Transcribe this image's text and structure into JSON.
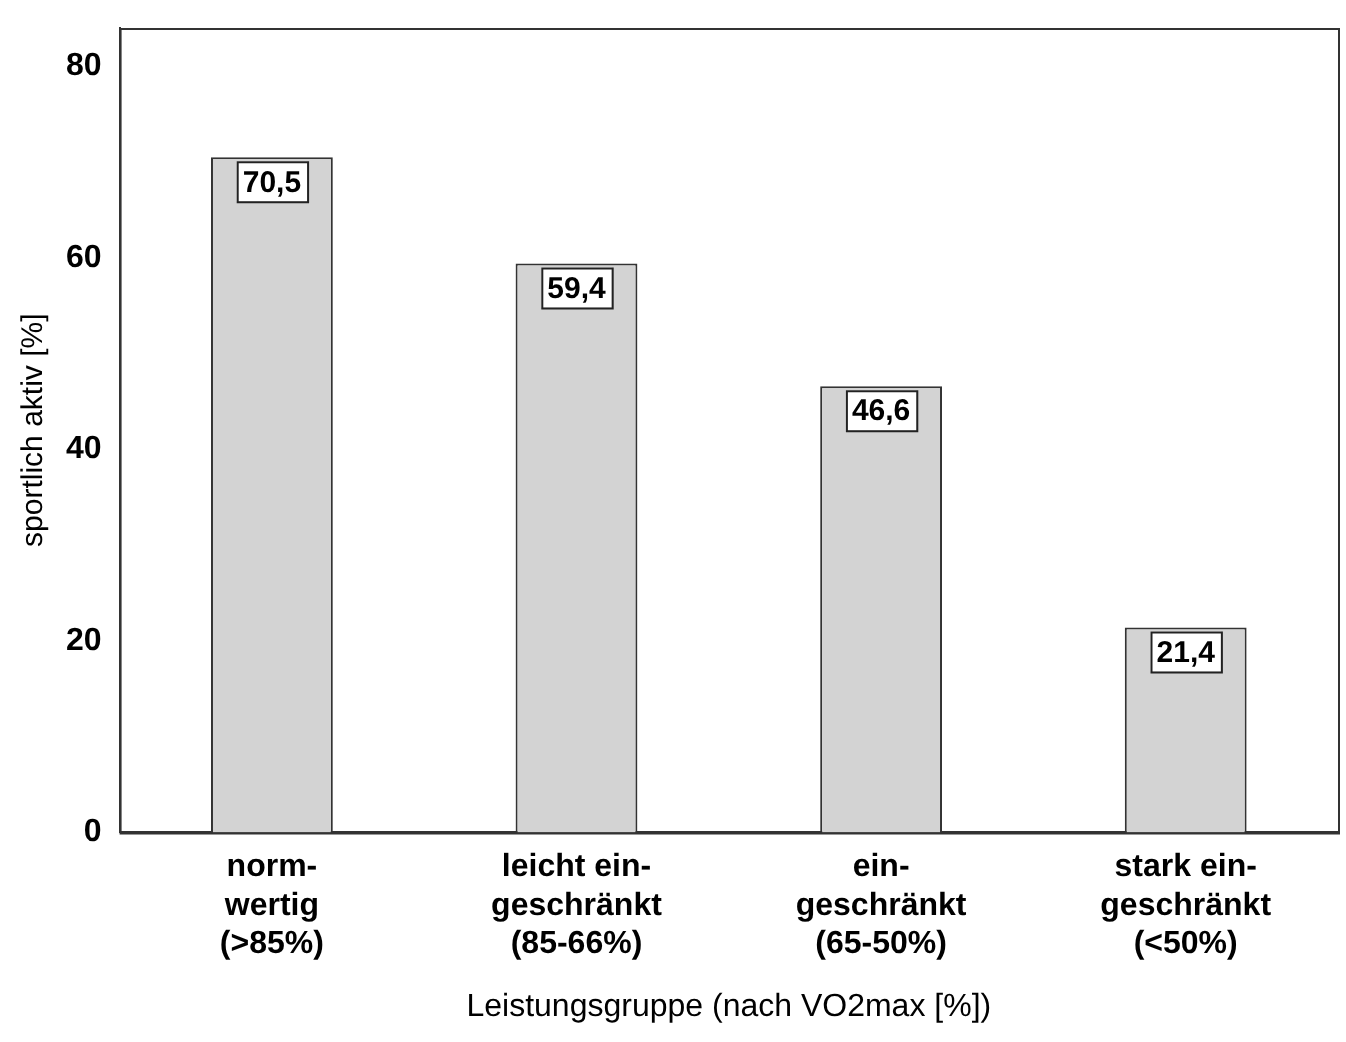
{
  "chart_data": {
    "type": "bar",
    "xlabel": "Leistungsgruppe (nach VO2max [%])",
    "ylabel": "sportlich aktiv [%]",
    "categories": [
      "norm-\nwertig\n(>85%)",
      "leicht ein-\ngeschränkt\n(85-66%)",
      "ein-\ngeschränkt\n(65-50%)",
      "stark ein-\ngeschränkt\n(<50%)"
    ],
    "values": [
      70.5,
      59.4,
      46.6,
      21.4
    ],
    "color": "#d3d3d3",
    "value_labels": [
      "70,5",
      "59,4",
      "46,6",
      "21,4"
    ],
    "ylim": [
      0,
      84
    ],
    "yticks": [
      0,
      20,
      40,
      60,
      80
    ],
    "grid": false,
    "legend": false
  }
}
